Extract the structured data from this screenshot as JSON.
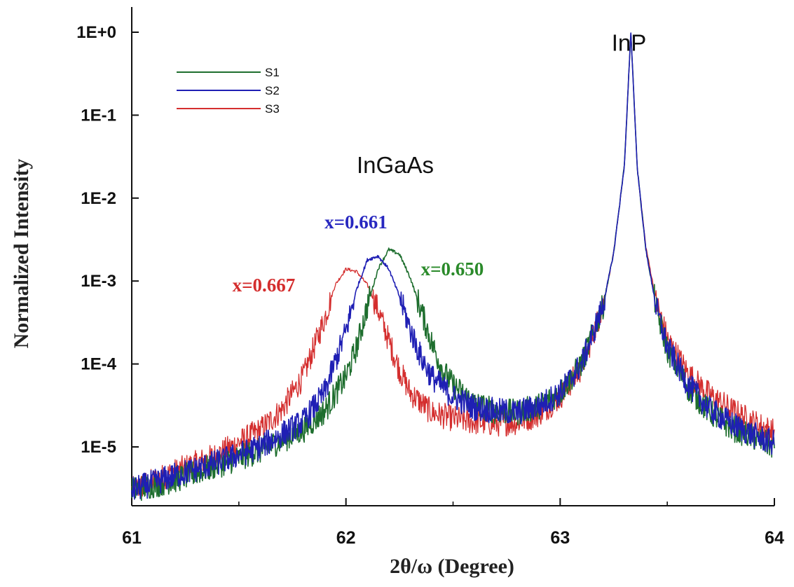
{
  "chart_data": {
    "type": "line",
    "xlabel": "2θ/ω (Degree)",
    "ylabel": "Normalized Intensity",
    "xlim": [
      61,
      64
    ],
    "ylim": [
      2e-06,
      1.6
    ],
    "y_scale": "log",
    "x_ticks": [
      "61",
      "62",
      "63",
      "64"
    ],
    "y_ticks": [
      "1E+0",
      "1E-1",
      "1E-2",
      "1E-3",
      "1E-4",
      "1E-5"
    ],
    "legend_position": "top-left",
    "grid": false,
    "series": [
      {
        "name": "S1",
        "color": "#1e6e2e",
        "x": [
          61.0,
          61.2,
          61.4,
          61.6,
          61.8,
          61.9,
          62.0,
          62.05,
          62.1,
          62.15,
          62.2,
          62.25,
          62.3,
          62.35,
          62.4,
          62.45,
          62.5,
          62.6,
          62.7,
          62.8,
          62.9,
          63.0,
          63.1,
          63.2,
          63.25,
          63.3,
          63.33,
          63.36,
          63.4,
          63.45,
          63.5,
          63.6,
          63.7,
          63.8,
          63.9,
          64.0
        ],
        "y": [
          3e-06,
          4e-06,
          6e-06,
          9e-06,
          1.6e-05,
          2.7e-05,
          7e-05,
          0.00016,
          0.0005,
          0.0014,
          0.0024,
          0.0021,
          0.0011,
          0.00045,
          0.00018,
          8.5e-05,
          5.5e-05,
          3.3e-05,
          2.7e-05,
          2.6e-05,
          3.1e-05,
          4.5e-05,
          0.0001,
          0.0005,
          0.0022,
          0.025,
          1.0,
          0.023,
          0.0024,
          0.00045,
          0.00015,
          5e-05,
          2.6e-05,
          1.7e-05,
          1.3e-05,
          1e-05
        ]
      },
      {
        "name": "S2",
        "color": "#1f1fb4",
        "x": [
          61.0,
          61.2,
          61.4,
          61.6,
          61.8,
          61.9,
          62.0,
          62.05,
          62.1,
          62.15,
          62.2,
          62.25,
          62.3,
          62.35,
          62.4,
          62.5,
          62.6,
          62.7,
          62.8,
          62.9,
          63.0,
          63.1,
          63.2,
          63.25,
          63.3,
          63.33,
          63.36,
          63.4,
          63.45,
          63.5,
          63.6,
          63.7,
          63.8,
          63.9,
          64.0
        ],
        "y": [
          3e-06,
          4.5e-06,
          6.5e-06,
          1e-05,
          2e-05,
          4.5e-05,
          0.00025,
          0.0008,
          0.0018,
          0.002,
          0.0014,
          0.00065,
          0.00026,
          0.00012,
          7e-05,
          4e-05,
          3e-05,
          2.7e-05,
          2.6e-05,
          3.1e-05,
          4.5e-05,
          0.0001,
          0.0005,
          0.0022,
          0.025,
          1.0,
          0.023,
          0.0024,
          0.00046,
          0.00016,
          5.5e-05,
          2.8e-05,
          1.9e-05,
          1.4e-05,
          1.1e-05
        ]
      },
      {
        "name": "S3",
        "color": "#d42e2e",
        "x": [
          61.0,
          61.2,
          61.4,
          61.6,
          61.7,
          61.8,
          61.9,
          61.95,
          62.0,
          62.05,
          62.1,
          62.15,
          62.2,
          62.25,
          62.3,
          62.4,
          62.5,
          62.6,
          62.7,
          62.8,
          62.9,
          63.0,
          63.1,
          63.2,
          63.25,
          63.3,
          63.33,
          63.36,
          63.4,
          63.45,
          63.5,
          63.6,
          63.7,
          63.8,
          63.9,
          64.0
        ],
        "y": [
          3e-06,
          5e-06,
          8e-06,
          1.6e-05,
          2.8e-05,
          7e-05,
          0.00035,
          0.0009,
          0.0014,
          0.0013,
          0.0009,
          0.00045,
          0.00019,
          8.5e-05,
          4.5e-05,
          2.6e-05,
          2.2e-05,
          2e-05,
          1.9e-05,
          2e-05,
          2.5e-05,
          4e-05,
          9e-05,
          0.0005,
          0.0022,
          0.025,
          1.0,
          0.023,
          0.0026,
          0.00055,
          0.0002,
          7.5e-05,
          4.2e-05,
          2.8e-05,
          2e-05,
          1.5e-05
        ]
      }
    ],
    "annotations": [
      {
        "text": "InP",
        "x": 63.24,
        "y": 0.6,
        "color": "#111111",
        "style": "peak"
      },
      {
        "text": "InGaAs",
        "x": 62.05,
        "y": 0.02,
        "color": "#111111",
        "style": "peak"
      },
      {
        "text": "x=0.661",
        "x": 61.9,
        "y": 0.0043,
        "color": "#2828c0",
        "style": "x"
      },
      {
        "text": "x=0.650",
        "x": 62.35,
        "y": 0.00117,
        "color": "#2a8a2a",
        "style": "x"
      },
      {
        "text": "x=0.667",
        "x": 61.47,
        "y": 0.00075,
        "color": "#d42e2e",
        "style": "x"
      }
    ]
  }
}
